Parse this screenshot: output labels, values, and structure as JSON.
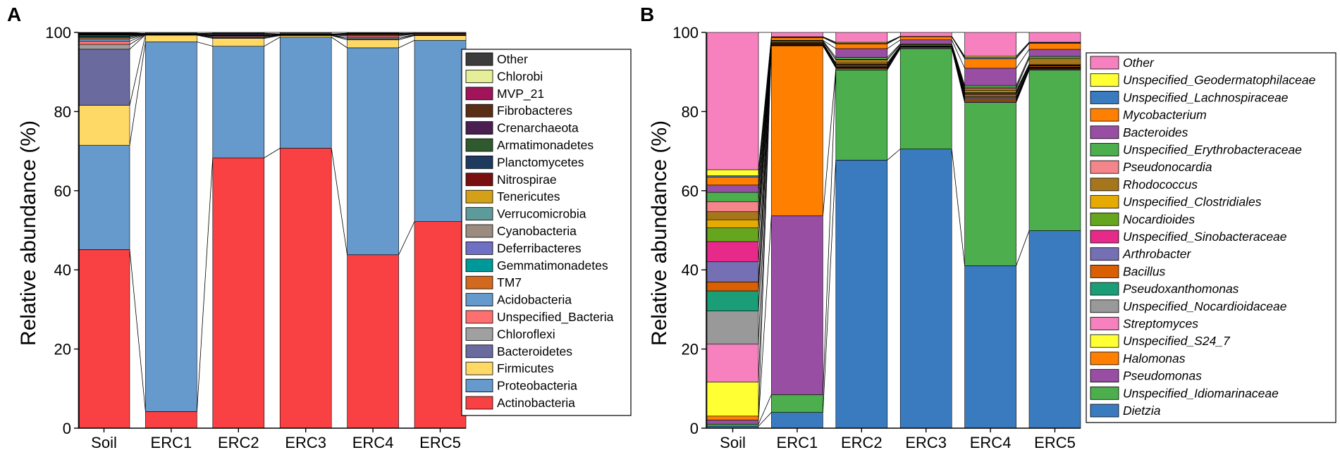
{
  "chart_data": [
    {
      "type": "bar",
      "stacked": true,
      "panel": "A",
      "ylabel": "Relative abundance (%)",
      "xlabel": "",
      "ylim": [
        0,
        100
      ],
      "yticks": [
        0,
        20,
        40,
        60,
        80,
        100
      ],
      "categories": [
        "Soil",
        "ERC1",
        "ERC2",
        "ERC3",
        "ERC4",
        "ERC5"
      ],
      "legend_italic": false,
      "legend_position": "right",
      "series": [
        {
          "name": "Actinobacteria",
          "color": "#f94144",
          "values": [
            45.2,
            4.2,
            68.3,
            70.8,
            43.9,
            52.2
          ]
        },
        {
          "name": "Proteobacteria",
          "color": "#6699cc",
          "values": [
            26.4,
            93.4,
            28.2,
            28.1,
            52.4,
            45.8
          ]
        },
        {
          "name": "Firmicutes",
          "color": "#ffd966",
          "values": [
            10.1,
            1.7,
            2.0,
            0.4,
            2.0,
            1.2
          ]
        },
        {
          "name": "Bacteroidetes",
          "color": "#6a6a9f",
          "values": [
            14.2,
            0.1,
            0.2,
            0.1,
            0.3,
            0.1
          ]
        },
        {
          "name": "Chloroflexi",
          "color": "#a0a0a0",
          "values": [
            1.2,
            0,
            0.2,
            0,
            0.3,
            0.1
          ]
        },
        {
          "name": "Unspecified_Bacteria",
          "color": "#ff6f6f",
          "values": [
            0.8,
            0.1,
            0.2,
            0.1,
            0.4,
            0.2
          ]
        },
        {
          "name": "Acidobacteria",
          "color": "#6699cc",
          "values": [
            0.6,
            0,
            0.1,
            0,
            0.2,
            0
          ]
        },
        {
          "name": "TM7",
          "color": "#d2691e",
          "values": [
            0.3,
            0.1,
            0.1,
            0.1,
            0.2,
            0.1
          ]
        },
        {
          "name": "Gemmatimonadetes",
          "color": "#009999",
          "values": [
            0.3,
            0,
            0.1,
            0,
            0.1,
            0
          ]
        },
        {
          "name": "Deferribacteres",
          "color": "#6f6fc4",
          "values": [
            0.1,
            0.1,
            0.2,
            0.1,
            0.1,
            0.1
          ]
        },
        {
          "name": "Cyanobacteria",
          "color": "#9c8c7f",
          "values": [
            0.2,
            0,
            0.1,
            0,
            0.1,
            0
          ]
        },
        {
          "name": "Verrucomicrobia",
          "color": "#5f9a9a",
          "values": [
            0.1,
            0,
            0,
            0,
            0,
            0
          ]
        },
        {
          "name": "Tenericutes",
          "color": "#d4a017",
          "values": [
            0.1,
            0,
            0,
            0,
            0,
            0
          ]
        },
        {
          "name": "Nitrospirae",
          "color": "#7a0f0f",
          "values": [
            0.1,
            0,
            0,
            0,
            0,
            0
          ]
        },
        {
          "name": "Planctomycetes",
          "color": "#1e3a5f",
          "values": [
            0.1,
            0,
            0,
            0,
            0,
            0
          ]
        },
        {
          "name": "Armatimonadetes",
          "color": "#2e5a2e",
          "values": [
            0.05,
            0,
            0,
            0,
            0,
            0
          ]
        },
        {
          "name": "Crenarchaeota",
          "color": "#4a2050",
          "values": [
            0.05,
            0,
            0,
            0,
            0,
            0
          ]
        },
        {
          "name": "Fibrobacteres",
          "color": "#5a2e14",
          "values": [
            0.05,
            0,
            0,
            0,
            0,
            0
          ]
        },
        {
          "name": "MVP_21",
          "color": "#a0145a",
          "values": [
            0.05,
            0,
            0.1,
            0,
            0,
            0
          ]
        },
        {
          "name": "Chlorobi",
          "color": "#e6ee99",
          "values": [
            0.05,
            0,
            0,
            0,
            0,
            0
          ]
        },
        {
          "name": "Other",
          "color": "#3c3c3c",
          "values": [
            0.1,
            0.3,
            0.2,
            0.4,
            0.2,
            0.2
          ]
        }
      ]
    },
    {
      "type": "bar",
      "stacked": true,
      "panel": "B",
      "ylabel": "Relative abundance (%)",
      "xlabel": "",
      "ylim": [
        0,
        100
      ],
      "yticks": [
        0,
        20,
        40,
        60,
        80,
        100
      ],
      "categories": [
        "Soil",
        "ERC1",
        "ERC2",
        "ERC3",
        "ERC4",
        "ERC5"
      ],
      "legend_italic": true,
      "legend_position": "right",
      "series": [
        {
          "name": "Dietzia",
          "color": "#3a7bbf",
          "values": [
            0.5,
            4.0,
            67.8,
            70.6,
            40.8,
            50.2
          ]
        },
        {
          "name": "Unspecified_Idiomarinaceae",
          "color": "#4cae4c",
          "values": [
            0.5,
            4.5,
            22.8,
            25.4,
            41.0,
            40.8
          ]
        },
        {
          "name": "Pseudomonas",
          "color": "#984ea3",
          "values": [
            1.0,
            45.3,
            0.3,
            0.2,
            0.3,
            0.2
          ]
        },
        {
          "name": "Halomonas",
          "color": "#ff7f00",
          "values": [
            1.0,
            43.0,
            0.2,
            0.2,
            0.3,
            0.2
          ]
        },
        {
          "name": "Unspecified_S24_7",
          "color": "#ffff33",
          "values": [
            8.4,
            0.1,
            0.1,
            0,
            0.2,
            0.1
          ]
        },
        {
          "name": "Streptomyces",
          "color": "#f781bf",
          "values": [
            9.4,
            0.1,
            0.1,
            0,
            0.2,
            0.1
          ]
        },
        {
          "name": "Unspecified_Nocardioidaceae",
          "color": "#999999",
          "values": [
            8.2,
            0.1,
            0.2,
            0.1,
            0.3,
            0.1
          ]
        },
        {
          "name": "Pseudoxanthomonas",
          "color": "#1b9e77",
          "values": [
            5.0,
            0.1,
            0.1,
            0,
            0.2,
            0.1
          ]
        },
        {
          "name": "Bacillus",
          "color": "#d95f02",
          "values": [
            2.2,
            0.2,
            0.3,
            0.1,
            0.5,
            0.3
          ]
        },
        {
          "name": "Arthrobacter",
          "color": "#7570b3",
          "values": [
            5.0,
            0.1,
            0.1,
            0,
            0.2,
            0.1
          ]
        },
        {
          "name": "Unspecified_Sinobacteraceae",
          "color": "#e7298a",
          "values": [
            5.0,
            0,
            0,
            0,
            0.2,
            0
          ]
        },
        {
          "name": "Nocardioides",
          "color": "#66a61e",
          "values": [
            3.4,
            0,
            0.1,
            0,
            0.2,
            0.1
          ]
        },
        {
          "name": "Unspecified_Clostridiales",
          "color": "#e6ab02",
          "values": [
            2.0,
            0.1,
            0.3,
            0.1,
            0.4,
            0.2
          ]
        },
        {
          "name": "Rhodococcus",
          "color": "#a6761d",
          "values": [
            2.0,
            0.3,
            0.8,
            0.3,
            0.5,
            1.5
          ]
        },
        {
          "name": "Pseudonocardia",
          "color": "#f4858a",
          "values": [
            2.5,
            0,
            0.1,
            0,
            0.3,
            0
          ]
        },
        {
          "name": "Unspecified_Erythrobacteraceae",
          "color": "#4cae4c",
          "values": [
            2.3,
            0.2,
            0.5,
            0.2,
            0.5,
            0.5
          ]
        },
        {
          "name": "Bacteroides",
          "color": "#984ea3",
          "values": [
            1.8,
            0.1,
            2.2,
            1.0,
            4.3,
            1.8
          ]
        },
        {
          "name": "Mycobacterium",
          "color": "#ff7f00",
          "values": [
            2.0,
            0.7,
            1.2,
            0.8,
            2.4,
            1.5
          ]
        },
        {
          "name": "Unspecified_Lachnospiraceae",
          "color": "#3a7bbf",
          "values": [
            0.3,
            0.1,
            0.2,
            0.1,
            0.3,
            0.2
          ]
        },
        {
          "name": "Unspecified_Geodermatophilaceae",
          "color": "#ffff33",
          "values": [
            1.5,
            0.1,
            0.2,
            0,
            0.3,
            0.1
          ]
        },
        {
          "name": "Other",
          "color": "#f781bf",
          "values": [
            34.0,
            1.1,
            2.5,
            1.0,
            6.0,
            2.5
          ]
        }
      ]
    }
  ]
}
